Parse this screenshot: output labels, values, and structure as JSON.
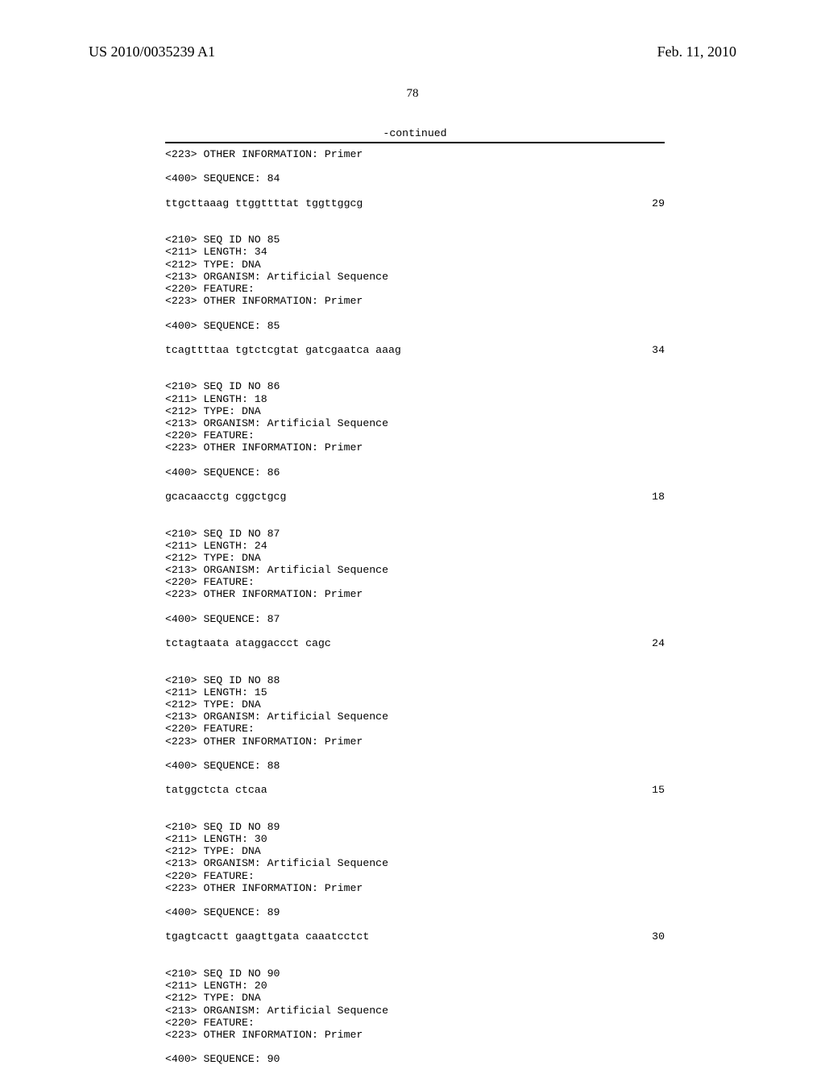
{
  "header": {
    "pub_number": "US 2010/0035239 A1",
    "date": "Feb. 11, 2010",
    "page": "78"
  },
  "continued_label": "-continued",
  "sequences": [
    {
      "prelines": [
        "<223> OTHER INFORMATION: Primer"
      ],
      "seq_label": "<400> SEQUENCE: 84",
      "seq_text": "ttgcttaaag ttggttttat tggttggcg",
      "seq_len": "29"
    },
    {
      "prelines": [
        "<210> SEQ ID NO 85",
        "<211> LENGTH: 34",
        "<212> TYPE: DNA",
        "<213> ORGANISM: Artificial Sequence",
        "<220> FEATURE:",
        "<223> OTHER INFORMATION: Primer"
      ],
      "seq_label": "<400> SEQUENCE: 85",
      "seq_text": "tcagttttaa tgtctcgtat gatcgaatca aaag",
      "seq_len": "34"
    },
    {
      "prelines": [
        "<210> SEQ ID NO 86",
        "<211> LENGTH: 18",
        "<212> TYPE: DNA",
        "<213> ORGANISM: Artificial Sequence",
        "<220> FEATURE:",
        "<223> OTHER INFORMATION: Primer"
      ],
      "seq_label": "<400> SEQUENCE: 86",
      "seq_text": "gcacaacctg cggctgcg",
      "seq_len": "18"
    },
    {
      "prelines": [
        "<210> SEQ ID NO 87",
        "<211> LENGTH: 24",
        "<212> TYPE: DNA",
        "<213> ORGANISM: Artificial Sequence",
        "<220> FEATURE:",
        "<223> OTHER INFORMATION: Primer"
      ],
      "seq_label": "<400> SEQUENCE: 87",
      "seq_text": "tctagtaata ataggaccct cagc",
      "seq_len": "24"
    },
    {
      "prelines": [
        "<210> SEQ ID NO 88",
        "<211> LENGTH: 15",
        "<212> TYPE: DNA",
        "<213> ORGANISM: Artificial Sequence",
        "<220> FEATURE:",
        "<223> OTHER INFORMATION: Primer"
      ],
      "seq_label": "<400> SEQUENCE: 88",
      "seq_text": "tatggctcta ctcaa",
      "seq_len": "15"
    },
    {
      "prelines": [
        "<210> SEQ ID NO 89",
        "<211> LENGTH: 30",
        "<212> TYPE: DNA",
        "<213> ORGANISM: Artificial Sequence",
        "<220> FEATURE:",
        "<223> OTHER INFORMATION: Primer"
      ],
      "seq_label": "<400> SEQUENCE: 89",
      "seq_text": "tgagtcactt gaagttgata caaatcctct",
      "seq_len": "30"
    },
    {
      "prelines": [
        "<210> SEQ ID NO 90",
        "<211> LENGTH: 20",
        "<212> TYPE: DNA",
        "<213> ORGANISM: Artificial Sequence",
        "<220> FEATURE:",
        "<223> OTHER INFORMATION: Primer"
      ],
      "seq_label": "<400> SEQUENCE: 90",
      "seq_text": "",
      "seq_len": ""
    }
  ]
}
